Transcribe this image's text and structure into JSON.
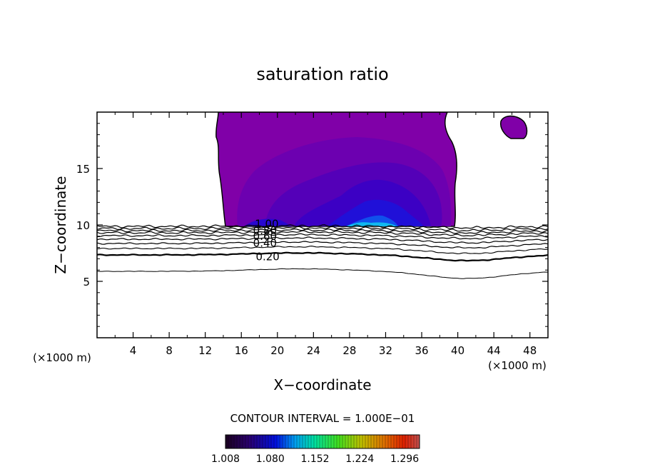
{
  "chart_data": {
    "type": "contour",
    "title": "saturation ratio",
    "xlabel": "X−coordinate",
    "ylabel": "Z−coordinate",
    "x_unit_left": "(×1000 m)",
    "x_unit_right": "(×1000 m)",
    "xlim": [
      0,
      50
    ],
    "ylim": [
      0,
      20
    ],
    "xticks": [
      4,
      8,
      12,
      16,
      20,
      24,
      28,
      32,
      36,
      40,
      44,
      48
    ],
    "yticks": [
      5,
      10,
      15
    ],
    "contour_interval_text": "CONTOUR INTERVAL = 1.000E−01",
    "contour_levels": [
      0.1,
      0.2,
      0.3,
      0.4,
      0.5,
      0.6,
      0.7,
      0.8,
      0.9,
      1.0
    ],
    "contour_labels": [
      {
        "text": "1.00",
        "x": 17.5,
        "y": 9.9
      },
      {
        "text": "0.80",
        "x": 17.3,
        "y": 9.3
      },
      {
        "text": "0.60",
        "x": 17.3,
        "y": 8.8
      },
      {
        "text": "0.40",
        "x": 17.3,
        "y": 8.2
      },
      {
        "text": "0.20",
        "x": 17.6,
        "y": 7.0
      }
    ],
    "colorbar": {
      "min": 1.008,
      "max": 1.32,
      "tick_labels": [
        "1.008",
        "1.080",
        "1.152",
        "1.224",
        "1.296"
      ]
    },
    "shaded_region": {
      "description_level": "saturation ratio > 1",
      "x_range": [
        13.5,
        39.5
      ],
      "z_range": [
        9.9,
        20
      ]
    }
  }
}
